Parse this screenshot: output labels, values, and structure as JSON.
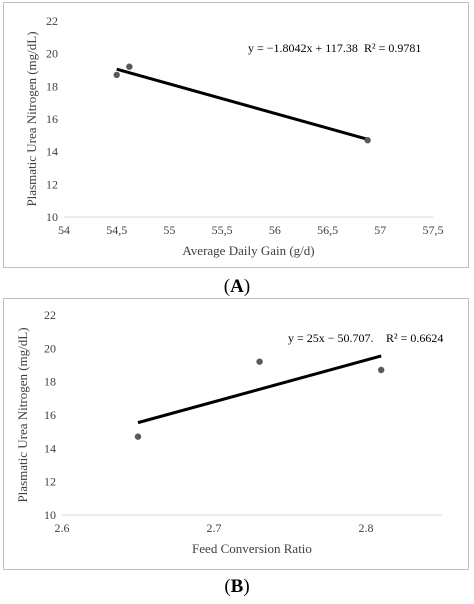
{
  "chart_data": [
    {
      "type": "scatter",
      "caption_letter": "A",
      "xlabel": "Average Daily Gain (g/d)",
      "ylabel": "Plasmatic Urea Nitrogen (mg/dL)",
      "xlim": [
        54,
        57.5
      ],
      "ylim": [
        10,
        22
      ],
      "x_ticks": [
        "54",
        "54,5",
        "55",
        "55,5",
        "56",
        "56,5",
        "57",
        "57,5"
      ],
      "y_ticks": [
        "10",
        "12",
        "14",
        "16",
        "18",
        "20",
        "22"
      ],
      "x_tick_values": [
        54,
        54.5,
        55,
        55.5,
        56,
        56.5,
        57,
        57.5
      ],
      "y_tick_values": [
        10,
        12,
        14,
        16,
        18,
        20,
        22
      ],
      "points": [
        {
          "x": 54.5,
          "y": 18.7
        },
        {
          "x": 54.62,
          "y": 19.2
        },
        {
          "x": 56.88,
          "y": 14.7
        }
      ],
      "trendline": {
        "slope": -1.8042,
        "intercept": 117.38,
        "x_range": [
          54.5,
          56.88
        ]
      },
      "equation": "y = −1.8042x + 117.38",
      "r2": "R² = 0.9781",
      "grid": false
    },
    {
      "type": "scatter",
      "caption_letter": "B",
      "xlabel": "Feed Conversion Ratio",
      "ylabel": "Plasmatic Urea Nitrogen (mg/dL)",
      "xlim": [
        2.6,
        2.85
      ],
      "ylim": [
        10,
        22
      ],
      "x_ticks": [
        "2.6",
        "2.7",
        "2.8"
      ],
      "y_ticks": [
        "10",
        "12",
        "14",
        "16",
        "18",
        "20",
        "22"
      ],
      "x_tick_values": [
        2.6,
        2.7,
        2.8
      ],
      "y_tick_values": [
        10,
        12,
        14,
        16,
        18,
        20,
        22
      ],
      "points": [
        {
          "x": 2.65,
          "y": 14.7
        },
        {
          "x": 2.73,
          "y": 19.2
        },
        {
          "x": 2.81,
          "y": 18.7
        }
      ],
      "trendline": {
        "slope": 25,
        "intercept": -50.707,
        "x_range": [
          2.65,
          2.81
        ]
      },
      "equation": "y = 25x − 50.707.",
      "r2": "R² = 0.6624",
      "grid": false
    }
  ]
}
